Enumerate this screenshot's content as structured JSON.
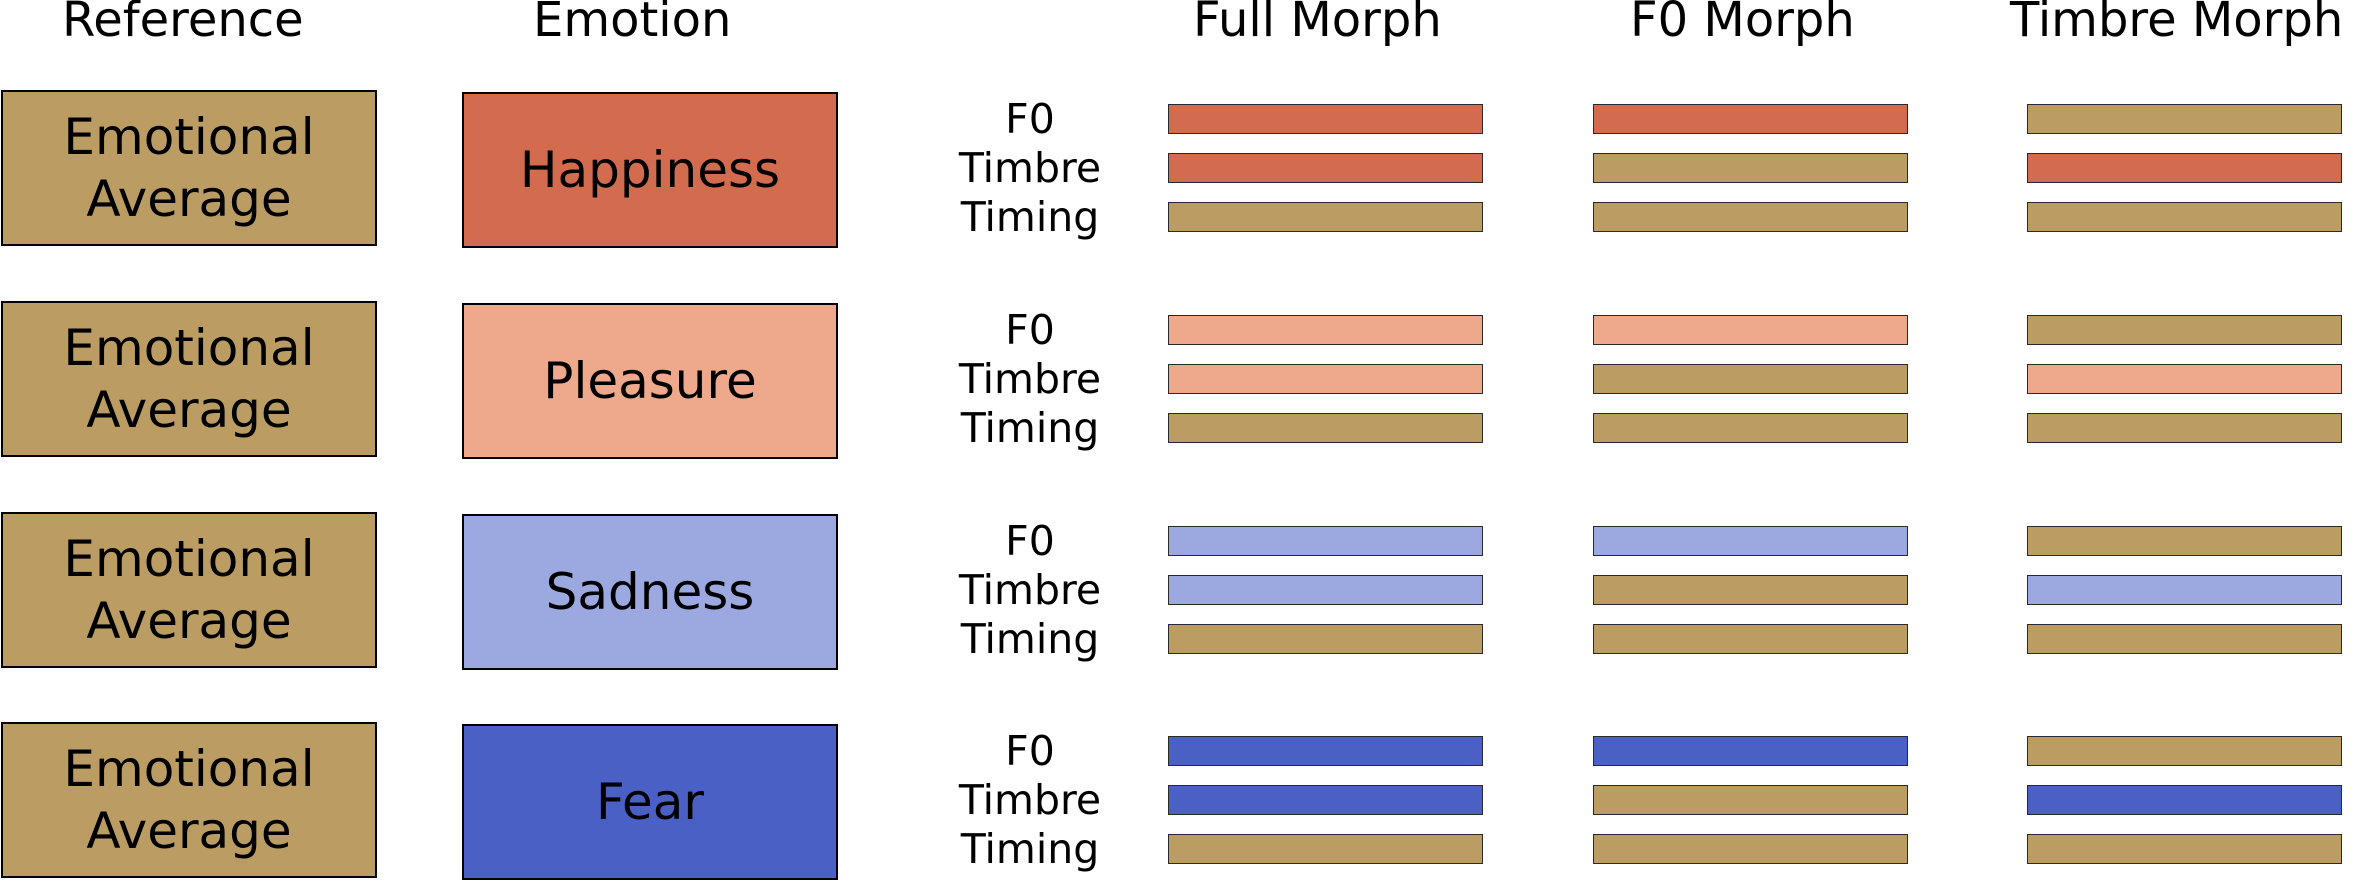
{
  "headers": {
    "reference": "Reference",
    "emotion": "Emotion",
    "full_morph": "Full Morph",
    "f0_morph": "F0 Morph",
    "timbre_morph": "Timbre Morph"
  },
  "colors": {
    "reference": "#BB9D64",
    "happiness": "#D36B4F",
    "pleasure": "#EEA88C",
    "sadness": "#9CA8E0",
    "fear": "#4A60C4"
  },
  "rows": [
    {
      "reference_label": "Emotional Average",
      "emotion_label": "Happiness",
      "emotion_key": "happiness",
      "features": [
        "F0",
        "Timbre",
        "Timing"
      ]
    },
    {
      "reference_label": "Emotional Average",
      "emotion_label": "Pleasure",
      "emotion_key": "pleasure",
      "features": [
        "F0",
        "Timbre",
        "Timing"
      ]
    },
    {
      "reference_label": "Emotional Average",
      "emotion_label": "Sadness",
      "emotion_key": "sadness",
      "features": [
        "F0",
        "Timbre",
        "Timing"
      ]
    },
    {
      "reference_label": "Emotional Average",
      "emotion_label": "Fear",
      "emotion_key": "fear",
      "features": [
        "F0",
        "Timbre",
        "Timing"
      ]
    }
  ],
  "morph_columns": [
    {
      "key": "full_morph",
      "emotion_features": [
        "F0",
        "Timbre"
      ]
    },
    {
      "key": "f0_morph",
      "emotion_features": [
        "F0"
      ]
    },
    {
      "key": "timbre_morph",
      "emotion_features": [
        "Timbre"
      ]
    }
  ]
}
